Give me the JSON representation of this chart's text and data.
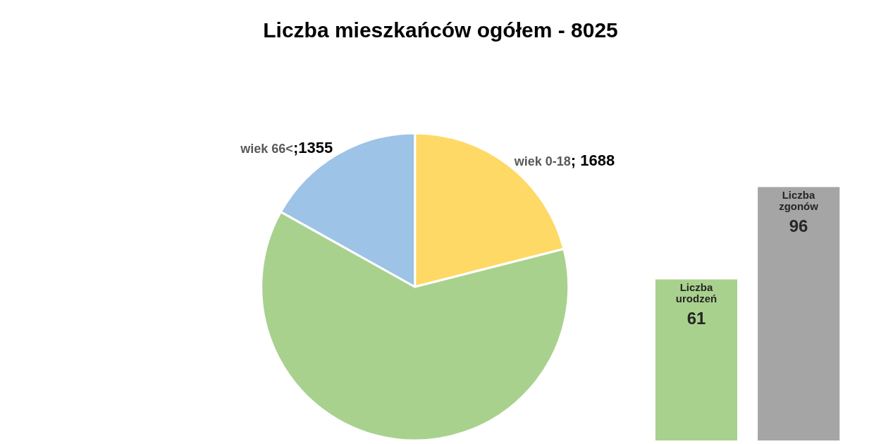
{
  "chart_data": [
    {
      "type": "pie",
      "title": "Liczba mieszkańców ogółem - 8025",
      "categories": [
        "wiek 0-18",
        null,
        "wiek 66<"
      ],
      "values": [
        1688,
        4982,
        1355
      ],
      "value_labels": [
        "; 1688",
        null,
        ";1355"
      ],
      "colors": [
        "#ffd966",
        "#a9d18e",
        "#9dc3e6"
      ],
      "legend": false
    },
    {
      "type": "bar",
      "categories": [
        "Liczba urodzeń",
        "Liczba zgonów"
      ],
      "values": [
        61,
        96
      ],
      "colors": [
        "#a9d18e",
        "#a5a5a5"
      ],
      "data_labels": true,
      "tick_labels": false
    }
  ]
}
